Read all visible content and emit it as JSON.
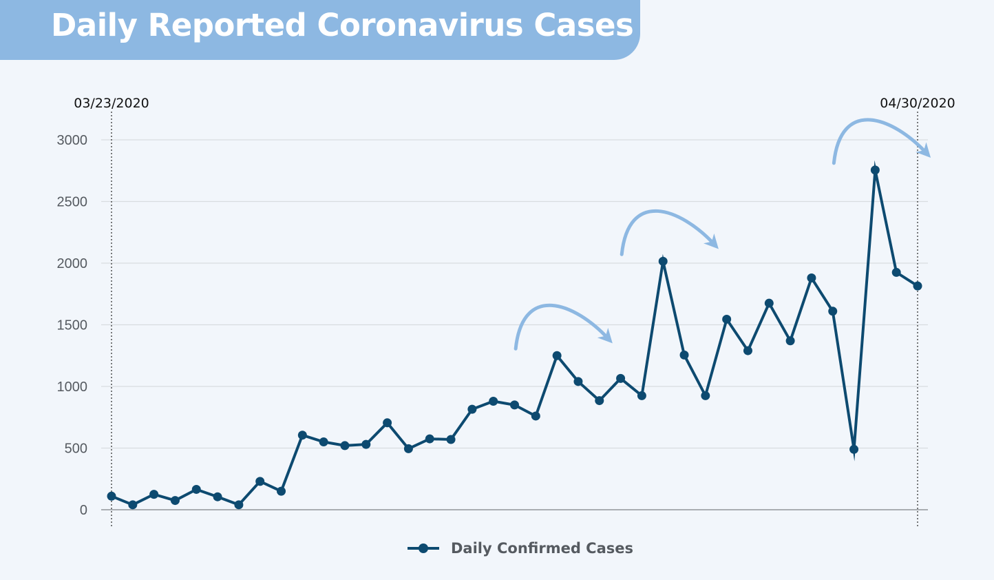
{
  "title": "Daily Reported Coronavirus Cases",
  "colors": {
    "background": "#f2f6fb",
    "banner": "#8db8e2",
    "series": "#0d4a70",
    "arrow": "#8db8e2",
    "grid": "#d8dcdf"
  },
  "chart_data": {
    "type": "line",
    "title": "Daily Reported Coronavirus Cases",
    "xlabel": "",
    "ylabel": "",
    "ylim": [
      0,
      3000
    ],
    "yticks": [
      0,
      500,
      1000,
      1500,
      2000,
      2500,
      3000
    ],
    "grid": true,
    "legend_placement": "bottom-center",
    "start_label": "03/23/2020",
    "end_label": "04/30/2020",
    "series": [
      {
        "name": "Daily Confirmed Cases",
        "values": [
          110,
          40,
          125,
          75,
          165,
          105,
          40,
          230,
          150,
          605,
          550,
          520,
          530,
          705,
          495,
          575,
          570,
          815,
          880,
          850,
          760,
          1250,
          1040,
          885,
          1065,
          925,
          2015,
          1255,
          925,
          1545,
          1290,
          1675,
          1370,
          1880,
          1610,
          490,
          2755,
          1925,
          1815
        ]
      }
    ],
    "annotations": [
      {
        "type": "curved-arrow",
        "at_index": 21
      },
      {
        "type": "curved-arrow",
        "at_index": 26
      },
      {
        "type": "curved-arrow",
        "at_index": 36
      }
    ]
  },
  "legend": {
    "label": "Daily Confirmed Cases"
  }
}
